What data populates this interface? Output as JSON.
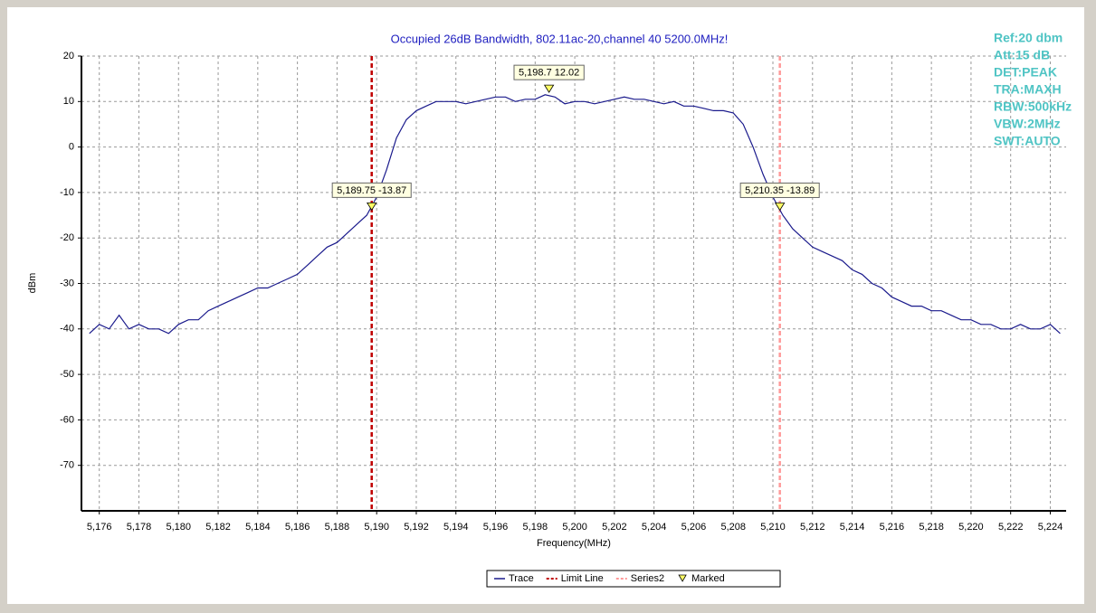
{
  "chart_data": {
    "type": "line",
    "title": "Occupied 26dB Bandwidth, 802.11ac-20,channel 40  5200.0MHz!",
    "xlabel": "Frequency(MHz)",
    "ylabel": "dBm",
    "xlim": [
      5175.1,
      5224.8
    ],
    "ylim": [
      -80,
      20
    ],
    "xticks": [
      {
        "value": 5176,
        "label": "5,176"
      },
      {
        "value": 5178,
        "label": "5,178"
      },
      {
        "value": 5180,
        "label": "5,180"
      },
      {
        "value": 5182,
        "label": "5,182"
      },
      {
        "value": 5184,
        "label": "5,184"
      },
      {
        "value": 5186,
        "label": "5,186"
      },
      {
        "value": 5188,
        "label": "5,188"
      },
      {
        "value": 5190,
        "label": "5,190"
      },
      {
        "value": 5192,
        "label": "5,192"
      },
      {
        "value": 5194,
        "label": "5,194"
      },
      {
        "value": 5196,
        "label": "5,196"
      },
      {
        "value": 5198,
        "label": "5,198"
      },
      {
        "value": 5200,
        "label": "5,200"
      },
      {
        "value": 5202,
        "label": "5,202"
      },
      {
        "value": 5204,
        "label": "5,204"
      },
      {
        "value": 5206,
        "label": "5,206"
      },
      {
        "value": 5208,
        "label": "5,208"
      },
      {
        "value": 5210,
        "label": "5,210"
      },
      {
        "value": 5212,
        "label": "5,212"
      },
      {
        "value": 5214,
        "label": "5,214"
      },
      {
        "value": 5216,
        "label": "5,216"
      },
      {
        "value": 5218,
        "label": "5,218"
      },
      {
        "value": 5220,
        "label": "5,220"
      },
      {
        "value": 5222,
        "label": "5,222"
      },
      {
        "value": 5224,
        "label": "5,224"
      }
    ],
    "yticks": [
      20,
      10,
      0,
      -10,
      -20,
      -30,
      -40,
      -50,
      -60,
      -70
    ],
    "grid": true,
    "legend": "bottom",
    "series": [
      {
        "name": "Trace",
        "color": "#1a1a8c",
        "x": [
          5175.5,
          5176,
          5176.5,
          5177,
          5177.5,
          5178,
          5178.5,
          5179,
          5179.5,
          5180,
          5180.5,
          5181,
          5181.5,
          5182,
          5182.5,
          5183,
          5183.5,
          5184,
          5184.5,
          5185,
          5185.5,
          5186,
          5186.5,
          5187,
          5187.5,
          5188,
          5188.5,
          5189,
          5189.5,
          5190,
          5190.5,
          5191,
          5191.5,
          5192,
          5192.5,
          5193,
          5193.5,
          5194,
          5194.5,
          5195,
          5195.5,
          5196,
          5196.5,
          5197,
          5197.5,
          5198,
          5198.5,
          5199,
          5199.5,
          5200,
          5200.5,
          5201,
          5201.5,
          5202,
          5202.5,
          5203,
          5203.5,
          5204,
          5204.5,
          5205,
          5205.5,
          5206,
          5206.5,
          5207,
          5207.5,
          5208,
          5208.5,
          5209,
          5209.5,
          5210,
          5210.5,
          5211,
          5211.5,
          5212,
          5212.5,
          5213,
          5213.5,
          5214,
          5214.5,
          5215,
          5215.5,
          5216,
          5216.5,
          5217,
          5217.5,
          5218,
          5218.5,
          5219,
          5219.5,
          5220,
          5220.5,
          5221,
          5221.5,
          5222,
          5222.5,
          5223,
          5223.5,
          5224,
          5224.5
        ],
        "values": [
          -41,
          -39,
          -40,
          -37,
          -40,
          -39,
          -40,
          -40,
          -41,
          -39,
          -38,
          -38,
          -36,
          -35,
          -34,
          -33,
          -32,
          -31,
          -31,
          -30,
          -29,
          -28,
          -26,
          -24,
          -22,
          -21,
          -19,
          -17,
          -15,
          -11,
          -5,
          2,
          6,
          8,
          9,
          10,
          10,
          10,
          9.5,
          10,
          10.5,
          11,
          11,
          10,
          10.5,
          10.5,
          11.5,
          11,
          9.5,
          10,
          10,
          9.5,
          10,
          10.5,
          11,
          10.5,
          10.5,
          10,
          9.5,
          10,
          9,
          9,
          8.5,
          8,
          8,
          7.5,
          5,
          0,
          -6,
          -11,
          -15,
          -18,
          -20,
          -22,
          -23,
          -24,
          -25,
          -27,
          -28,
          -30,
          -31,
          -33,
          -34,
          -35,
          -35,
          -36,
          -36,
          -37,
          -38,
          -38,
          -39,
          -39,
          -40,
          -40,
          -39,
          -40,
          -40,
          -39,
          -41
        ]
      },
      {
        "name": "Marked",
        "color": "#ffff66",
        "x": [
          5189.75,
          5198.7,
          5210.35
        ],
        "values": [
          -13.87,
          12.02,
          -13.89
        ],
        "value_labels": [
          "5,189.75 -13.87",
          "5,198.7 12.02",
          "5,210.35 -13.89"
        ]
      }
    ],
    "vlines": [
      {
        "name": "Limit Line",
        "color": "#c00000",
        "x": 5189.75
      },
      {
        "name": "Series2",
        "color": "#ff9999",
        "x": 5210.35
      }
    ],
    "info": [
      "Ref:20 dbm",
      "Att:15 dB",
      "DET:PEAK",
      "TRA:MAXH",
      "RBW:500kHz",
      "VBW:2MHz",
      "SWT:AUTO"
    ]
  }
}
